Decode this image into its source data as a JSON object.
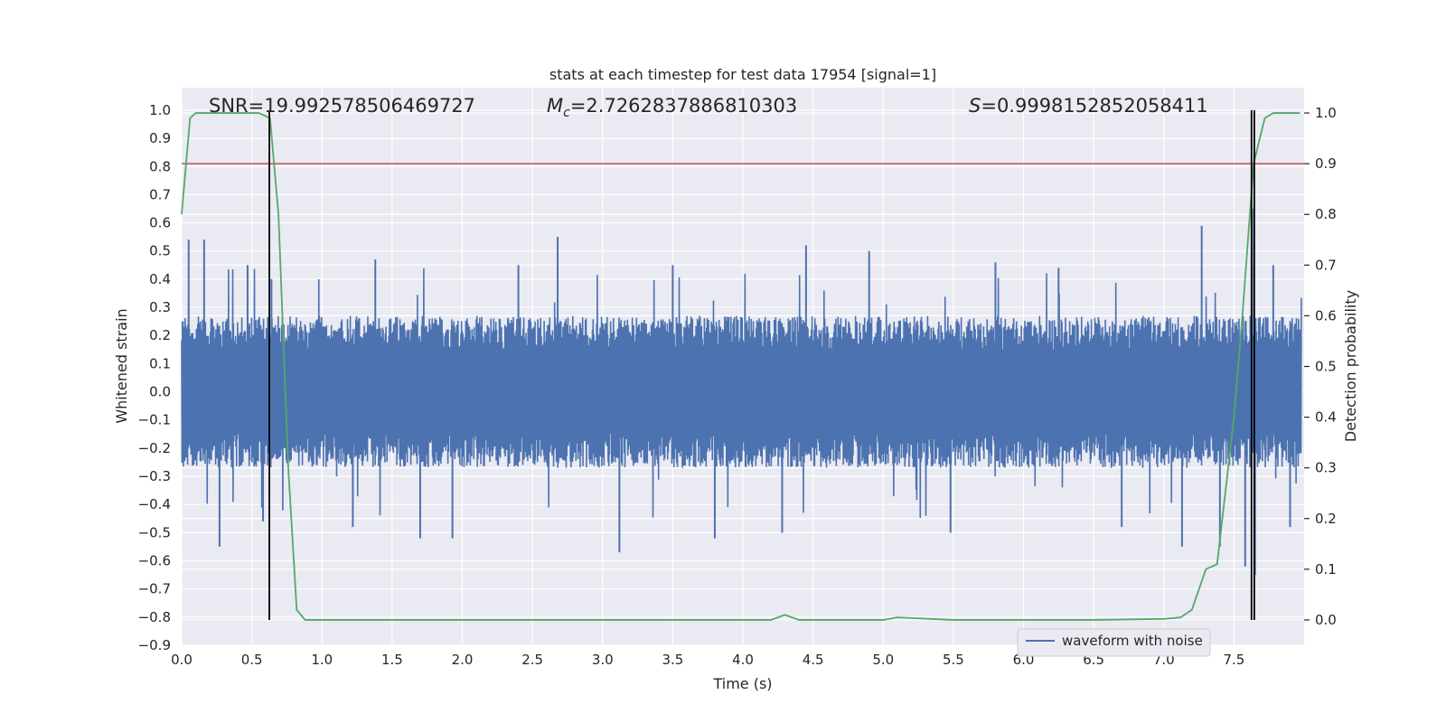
{
  "chart_data": {
    "type": "line",
    "title": "stats at each timestep for test data 17954 [signal=1]",
    "xlabel": "Time (s)",
    "ylabel_left": "Whitened strain",
    "ylabel_right": "Detection probability",
    "xlim": [
      0.0,
      8.0
    ],
    "ylim_left": [
      -0.9,
      1.08
    ],
    "ylim_right": [
      -0.05,
      1.05
    ],
    "x_ticks": [
      0.0,
      0.5,
      1.0,
      1.5,
      2.0,
      2.5,
      3.0,
      3.5,
      4.0,
      4.5,
      5.0,
      5.5,
      6.0,
      6.5,
      7.0,
      7.5
    ],
    "x_tick_labels": [
      "0.0",
      "0.5",
      "1.0",
      "1.5",
      "2.0",
      "2.5",
      "3.0",
      "3.5",
      "4.0",
      "4.5",
      "5.0",
      "5.5",
      "6.0",
      "6.5",
      "7.0",
      "7.5"
    ],
    "y_left_ticks": [
      1.0,
      0.9,
      0.8,
      0.7,
      0.6,
      0.5,
      0.4,
      0.3,
      0.2,
      0.1,
      0.0,
      -0.1,
      -0.2,
      -0.3,
      -0.4,
      -0.5,
      -0.6,
      -0.7,
      -0.8,
      -0.9
    ],
    "y_left_tick_labels": [
      "1.0",
      "0.9",
      "0.8",
      "0.7",
      "0.6",
      "0.5",
      "0.4",
      "0.3",
      "0.2",
      "0.1",
      "0.0",
      "−0.1",
      "−0.2",
      "−0.3",
      "−0.4",
      "−0.5",
      "−0.6",
      "−0.7",
      "−0.8",
      "−0.9"
    ],
    "y_right_ticks": [
      1.0,
      0.9,
      0.8,
      0.7,
      0.6,
      0.5,
      0.4,
      0.3,
      0.2,
      0.1,
      0.0
    ],
    "y_right_tick_labels": [
      "1.0",
      "0.9",
      "0.8",
      "0.7",
      "0.6",
      "0.5",
      "0.4",
      "0.3",
      "0.2",
      "0.1",
      "0.0"
    ],
    "annotations": {
      "snr": "SNR=19.992578506469727",
      "mc_symbol": "M",
      "mc_sub": "c",
      "mc_value": "=2.7262837886810303",
      "s_symbol": "S",
      "s_value": "=0.9998152852058411"
    },
    "legend": {
      "label": "waveform with noise",
      "position": "lower-right"
    },
    "threshold": {
      "value": 0.9,
      "axis": "right",
      "color": "#c44e52"
    },
    "vertical_markers": [
      {
        "x": 0.625,
        "y_range": [
          -0.81,
          1.0
        ]
      },
      {
        "x": 7.625,
        "y_range": [
          -0.81,
          1.0
        ]
      },
      {
        "x": 7.645,
        "y_range": [
          -0.81,
          1.0
        ]
      }
    ],
    "waveform": {
      "name": "waveform with noise",
      "color": "#4c72b0",
      "description": "Whitened noisy strain, 8 s of data; dense band roughly ±0.27 with spikes up to about ±0.55 and a burst near 7.6 s reaching about ±0.65.",
      "band_half_width": 0.27,
      "spikes": [
        {
          "x": 0.05,
          "y": 0.54
        },
        {
          "x": 0.16,
          "y": 0.54
        },
        {
          "x": 0.27,
          "y": -0.55
        },
        {
          "x": 0.47,
          "y": 0.45
        },
        {
          "x": 0.58,
          "y": -0.46
        },
        {
          "x": 0.64,
          "y": 0.4
        },
        {
          "x": 1.22,
          "y": -0.48
        },
        {
          "x": 1.38,
          "y": 0.47
        },
        {
          "x": 1.7,
          "y": -0.52
        },
        {
          "x": 1.93,
          "y": -0.52
        },
        {
          "x": 2.4,
          "y": 0.45
        },
        {
          "x": 2.68,
          "y": 0.55
        },
        {
          "x": 3.12,
          "y": -0.57
        },
        {
          "x": 3.5,
          "y": 0.45
        },
        {
          "x": 3.8,
          "y": -0.52
        },
        {
          "x": 4.28,
          "y": -0.5
        },
        {
          "x": 4.45,
          "y": 0.52
        },
        {
          "x": 4.9,
          "y": 0.5
        },
        {
          "x": 5.48,
          "y": -0.5
        },
        {
          "x": 5.8,
          "y": 0.46
        },
        {
          "x": 6.25,
          "y": 0.44
        },
        {
          "x": 6.7,
          "y": -0.48
        },
        {
          "x": 7.13,
          "y": -0.55
        },
        {
          "x": 7.27,
          "y": 0.59
        },
        {
          "x": 7.4,
          "y": -0.55
        },
        {
          "x": 7.58,
          "y": -0.62
        },
        {
          "x": 7.63,
          "y": 0.65
        },
        {
          "x": 7.65,
          "y": -0.65
        },
        {
          "x": 7.78,
          "y": 0.45
        },
        {
          "x": 7.9,
          "y": -0.48
        }
      ]
    },
    "probability": {
      "name": "Detection probability",
      "color": "#55a868",
      "x": [
        0.0,
        0.06,
        0.1,
        0.55,
        0.63,
        0.69,
        0.76,
        0.82,
        0.88,
        1.0,
        1.5,
        2.0,
        2.5,
        3.0,
        3.5,
        4.0,
        4.2,
        4.3,
        4.4,
        5.0,
        5.1,
        5.5,
        6.0,
        6.5,
        7.0,
        7.12,
        7.2,
        7.3,
        7.38,
        7.5,
        7.56,
        7.64,
        7.72,
        7.78,
        7.97
      ],
      "y": [
        0.8,
        0.99,
        1.0,
        1.0,
        0.99,
        0.8,
        0.3,
        0.02,
        0.0,
        0.0,
        0.0,
        0.0,
        0.0,
        0.0,
        0.0,
        0.0,
        0.0,
        0.01,
        0.0,
        0.0,
        0.005,
        0.0,
        0.0,
        0.0,
        0.002,
        0.005,
        0.02,
        0.1,
        0.11,
        0.4,
        0.6,
        0.9,
        0.99,
        1.0,
        1.0
      ]
    }
  }
}
